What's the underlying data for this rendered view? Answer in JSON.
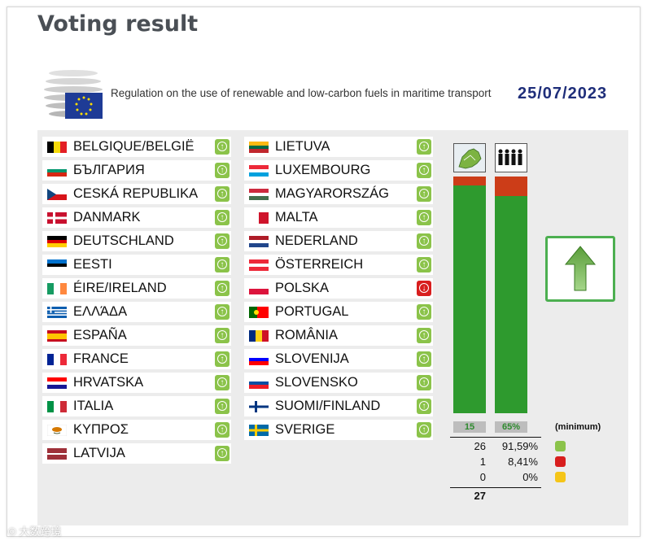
{
  "page": {
    "title": "Voting result"
  },
  "header": {
    "regulation_text": "Regulation on the use of renewable and low-carbon fuels in maritime transport",
    "date": "25/07/2023",
    "logo_icon": "council-building-eu-flag-icon"
  },
  "countries_left": [
    {
      "name": "BELGIQUE/BELGIË",
      "vote": "yes",
      "flag": [
        "#000000",
        "#f5d90a",
        "#e31e24"
      ],
      "dir": "v"
    },
    {
      "name": "БЪЛГАРИЯ",
      "vote": "yes",
      "flag": [
        "#ffffff",
        "#00966e",
        "#d62612"
      ],
      "dir": "h"
    },
    {
      "name": "CESKÁ REPUBLIKA",
      "vote": "yes",
      "flag": [
        "#ffffff",
        "#d7141a",
        "#11457e"
      ],
      "dir": "cz"
    },
    {
      "name": "DANMARK",
      "vote": "yes",
      "flag": [
        "#c8102e",
        "#ffffff"
      ],
      "dir": "cross"
    },
    {
      "name": "DEUTSCHLAND",
      "vote": "yes",
      "flag": [
        "#000000",
        "#dd0000",
        "#ffce00"
      ],
      "dir": "h"
    },
    {
      "name": "EESTI",
      "vote": "yes",
      "flag": [
        "#0072ce",
        "#000000",
        "#ffffff"
      ],
      "dir": "h"
    },
    {
      "name": "ÉIRE/IRELAND",
      "vote": "yes",
      "flag": [
        "#169b62",
        "#ffffff",
        "#ff883e"
      ],
      "dir": "v"
    },
    {
      "name": "ΕΛΛΆΔΑ",
      "vote": "yes",
      "flag": [
        "#0d5eaf",
        "#ffffff"
      ],
      "dir": "gr"
    },
    {
      "name": "ESPAÑA",
      "vote": "yes",
      "flag": [
        "#c60b1e",
        "#ffc400",
        "#c60b1e"
      ],
      "dir": "es"
    },
    {
      "name": "FRANCE",
      "vote": "yes",
      "flag": [
        "#002395",
        "#ffffff",
        "#ed2939"
      ],
      "dir": "v"
    },
    {
      "name": "HRVATSKA",
      "vote": "yes",
      "flag": [
        "#ff0000",
        "#ffffff",
        "#171796"
      ],
      "dir": "h"
    },
    {
      "name": "ITALIA",
      "vote": "yes",
      "flag": [
        "#009246",
        "#ffffff",
        "#ce2b37"
      ],
      "dir": "v"
    },
    {
      "name": "ΚΥΠΡΟΣ",
      "vote": "yes",
      "flag": [
        "#ffffff",
        "#d57800"
      ],
      "dir": "cy"
    },
    {
      "name": "LATVIJA",
      "vote": "yes",
      "flag": [
        "#9e3039",
        "#ffffff",
        "#9e3039"
      ],
      "dir": "lv"
    }
  ],
  "countries_right": [
    {
      "name": "LIETUVA",
      "vote": "yes",
      "flag": [
        "#fdb913",
        "#006a44",
        "#c1272d"
      ],
      "dir": "h"
    },
    {
      "name": "LUXEMBOURG",
      "vote": "yes",
      "flag": [
        "#ed2939",
        "#ffffff",
        "#00a1de"
      ],
      "dir": "h"
    },
    {
      "name": "MAGYARORSZÁG",
      "vote": "yes",
      "flag": [
        "#cd2a3e",
        "#ffffff",
        "#436f4d"
      ],
      "dir": "h"
    },
    {
      "name": "MALTA",
      "vote": "yes",
      "flag": [
        "#ffffff",
        "#cf142b"
      ],
      "dir": "v2"
    },
    {
      "name": "NEDERLAND",
      "vote": "yes",
      "flag": [
        "#ae1c28",
        "#ffffff",
        "#21468b"
      ],
      "dir": "h"
    },
    {
      "name": "ÖSTERREICH",
      "vote": "yes",
      "flag": [
        "#ed2939",
        "#ffffff",
        "#ed2939"
      ],
      "dir": "h"
    },
    {
      "name": "POLSKA",
      "vote": "no",
      "flag": [
        "#ffffff",
        "#dc143c"
      ],
      "dir": "h2"
    },
    {
      "name": "PORTUGAL",
      "vote": "yes",
      "flag": [
        "#006600",
        "#ff0000"
      ],
      "dir": "pt"
    },
    {
      "name": "ROMÂNIA",
      "vote": "yes",
      "flag": [
        "#002b7f",
        "#fcd116",
        "#ce1126"
      ],
      "dir": "v"
    },
    {
      "name": "SLOVENIJA",
      "vote": "yes",
      "flag": [
        "#ffffff",
        "#0000ff",
        "#ff0000"
      ],
      "dir": "h"
    },
    {
      "name": "SLOVENSKO",
      "vote": "yes",
      "flag": [
        "#ffffff",
        "#0b4ea2",
        "#ee1c25"
      ],
      "dir": "h"
    },
    {
      "name": "SUOMI/FINLAND",
      "vote": "yes",
      "flag": [
        "#ffffff",
        "#003580"
      ],
      "dir": "cross"
    },
    {
      "name": "SVERIGE",
      "vote": "yes",
      "flag": [
        "#006aa7",
        "#fecc00"
      ],
      "dir": "cross"
    }
  ],
  "chart": {
    "member_states_icon": "eu-map-icon",
    "population_icon": "population-people-icon",
    "member_states_yes_pct": 96.3,
    "population_yes_pct": 91.59,
    "threshold_states": "15",
    "threshold_population": "65%",
    "minimum_label": "(minimum)"
  },
  "stats": [
    {
      "count": "26",
      "pct": "91,59%",
      "type": "yes"
    },
    {
      "count": "1",
      "pct": "8,41%",
      "type": "no"
    },
    {
      "count": "0",
      "pct": "0%",
      "type": "abs"
    }
  ],
  "total": "27",
  "result_icon": "adopted-up-arrow-icon",
  "watermark": "© 大数跨境"
}
